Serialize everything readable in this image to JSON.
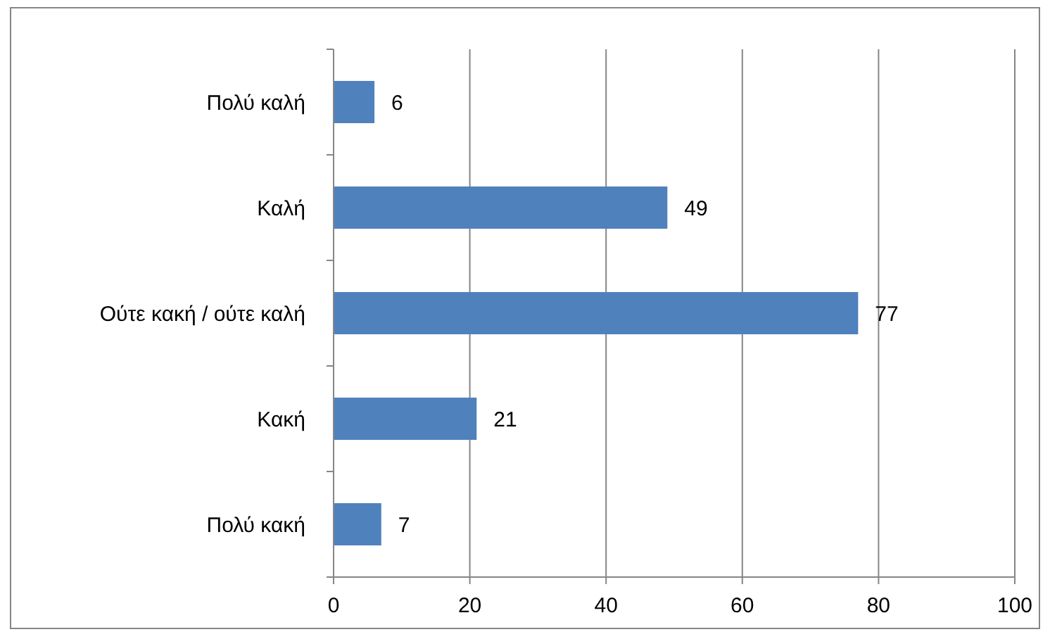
{
  "chart_data": {
    "type": "bar",
    "orientation": "horizontal",
    "categories": [
      "Πολύ καλή",
      "Καλή",
      "Ούτε κακή / ούτε καλή",
      "Κακή",
      "Πολύ κακή"
    ],
    "values": [
      6,
      49,
      77,
      21,
      7
    ],
    "color": "#4f81bd",
    "xlim": [
      0,
      100
    ],
    "xticks": [
      0,
      20,
      40,
      60,
      80,
      100
    ],
    "grid": "x",
    "data_labels": true
  }
}
